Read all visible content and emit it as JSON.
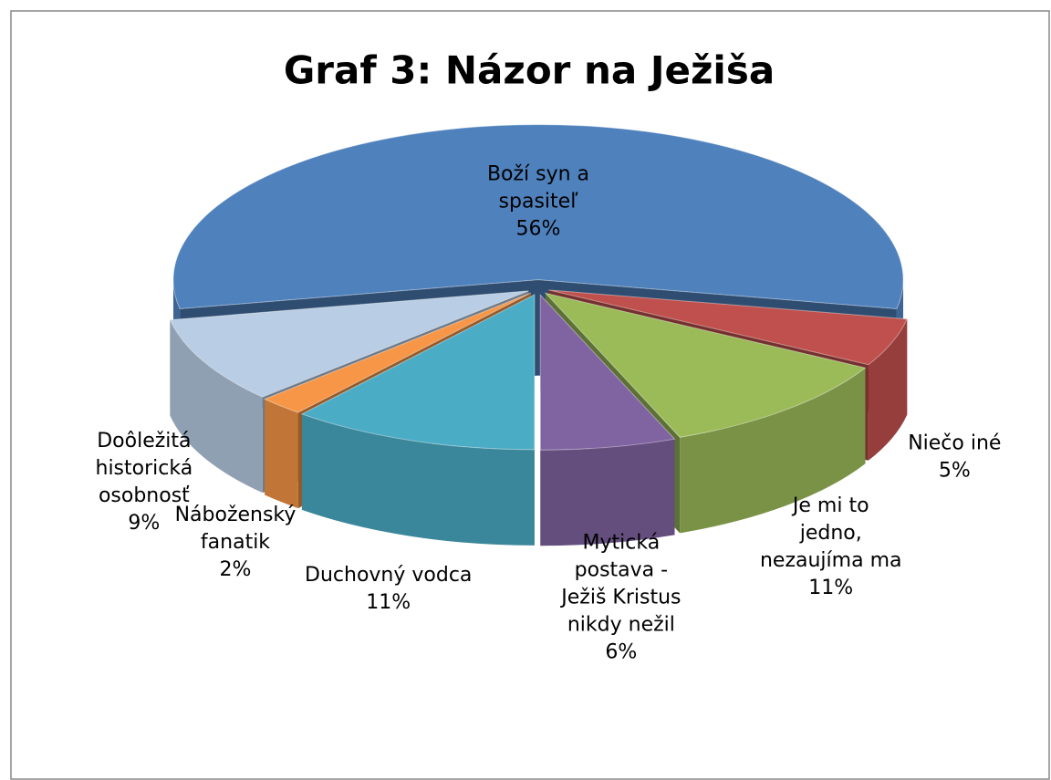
{
  "chart_data": {
    "type": "pie3d",
    "title": "Graf 3: Názor na Ježiša",
    "categories": [
      "Boží syn a spasiteľ",
      "Niečo iné",
      "Je mi to jedno, nezaujíma ma",
      "Mytická postava - Ježiš Kristus nikdy nežil",
      "Duchovný vodca",
      "Náboženský fanatik",
      "Doôležitá historická osobnosť"
    ],
    "values": [
      56,
      5,
      11,
      6,
      11,
      2,
      9
    ],
    "value_labels": [
      "56%",
      "5%",
      "11%",
      "6%",
      "11%",
      "2%",
      "9%"
    ],
    "colors": [
      "#4f81bd",
      "#c0504d",
      "#9bbb59",
      "#8064a2",
      "#4bacc6",
      "#f79646",
      "#b9cde5"
    ]
  }
}
